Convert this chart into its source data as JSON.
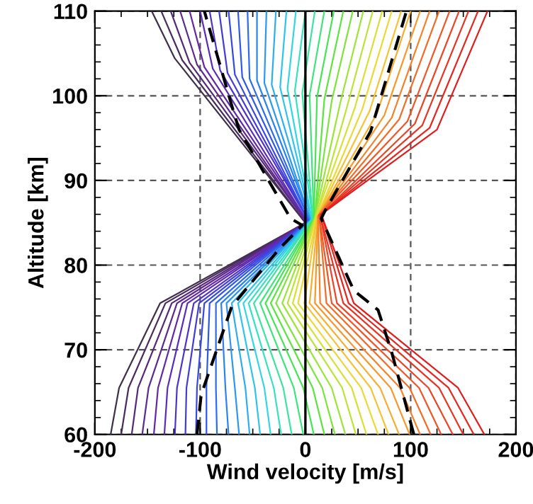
{
  "chart_data": {
    "type": "line",
    "xlabel": "Wind velocity [m/s]",
    "ylabel": "Altitude [km]",
    "xlim": [
      -200,
      200
    ],
    "xticks": [
      -200,
      -100,
      0,
      100,
      200
    ],
    "ylim": [
      60,
      110
    ],
    "yticks": [
      60,
      70,
      80,
      90,
      100,
      110
    ],
    "grid": true,
    "ref_lines": [
      {
        "axis": "x",
        "value": 0,
        "color": "#000000",
        "line_style": "solid"
      }
    ],
    "series": [
      {
        "color": "#40304a",
        "x": [
          -185,
          -177,
          -138,
          0,
          -124,
          -146
        ],
        "values": [
          60,
          65.5,
          75.5,
          85,
          104.4,
          110
        ]
      },
      {
        "color": "#4a2c60",
        "x": [
          -175,
          -168,
          -133,
          0,
          -117,
          -137
        ],
        "values": [
          60,
          65.5,
          75.5,
          85,
          104.2,
          110
        ]
      },
      {
        "color": "#542a78",
        "x": [
          -165,
          -159,
          -127,
          1,
          -110,
          -128
        ],
        "values": [
          60,
          65.5,
          75.5,
          85.1,
          103.9,
          110
        ]
      },
      {
        "color": "#5e2a8e",
        "x": [
          -155,
          -149,
          -122,
          1,
          -103,
          -119
        ],
        "values": [
          60,
          65.5,
          75.5,
          85.1,
          103.7,
          110
        ]
      },
      {
        "color": "#6428a4",
        "x": [
          -144,
          -140,
          -117,
          2,
          -96,
          -110
        ],
        "values": [
          60,
          65.5,
          75.5,
          85.1,
          103.4,
          110
        ]
      },
      {
        "color": "#5c2cb8",
        "x": [
          -134,
          -131,
          -112,
          2,
          -88,
          -100
        ],
        "values": [
          60,
          65.5,
          75.5,
          85.1,
          103.2,
          110
        ]
      },
      {
        "color": "#5034c8",
        "x": [
          -124,
          -122,
          -106,
          3,
          -81,
          -91
        ],
        "values": [
          60,
          65.5,
          75.5,
          85.2,
          103,
          110
        ]
      },
      {
        "color": "#443cd6",
        "x": [
          -114,
          -113,
          -101,
          3,
          -74,
          -82
        ],
        "values": [
          60,
          65.5,
          75.5,
          85.2,
          102.7,
          110
        ]
      },
      {
        "color": "#3848e2",
        "x": [
          -104,
          -103,
          -96,
          3,
          -67,
          -73
        ],
        "values": [
          60,
          65.5,
          75.5,
          85.2,
          102.5,
          110
        ]
      },
      {
        "color": "#3058ea",
        "x": [
          -94,
          -94,
          -91,
          4,
          -60,
          -64
        ],
        "values": [
          60,
          65.5,
          75.5,
          85.3,
          102.2,
          110
        ]
      },
      {
        "color": "#2c6cf0",
        "x": [
          -84,
          -85,
          -85,
          4,
          -53,
          -55
        ],
        "values": [
          60,
          65.5,
          75.5,
          85.3,
          102,
          110
        ]
      },
      {
        "color": "#2c82f2",
        "x": [
          -73,
          -76,
          -80,
          5,
          -46,
          -46
        ],
        "values": [
          60,
          65.5,
          75.5,
          85.3,
          101.8,
          110
        ]
      },
      {
        "color": "#2c98f2",
        "x": [
          -63,
          -67,
          -75,
          5,
          -39,
          -37
        ],
        "values": [
          60,
          65.5,
          75.5,
          85.3,
          101.5,
          110
        ]
      },
      {
        "color": "#2eaef0",
        "x": [
          -53,
          -57,
          -70,
          6,
          -32,
          -28
        ],
        "values": [
          60,
          65.5,
          75.5,
          85.4,
          101.3,
          110
        ]
      },
      {
        "color": "#30c4ec",
        "x": [
          -43,
          -48,
          -64,
          6,
          -24,
          -18
        ],
        "values": [
          60,
          65.5,
          75.5,
          85.4,
          101,
          110
        ]
      },
      {
        "color": "#34d6e0",
        "x": [
          -33,
          -39,
          -59,
          6,
          -17,
          -9
        ],
        "values": [
          60,
          65.5,
          75.5,
          85.4,
          100.8,
          110
        ]
      },
      {
        "color": "#38e0c4",
        "x": [
          -23,
          -30,
          -54,
          7,
          -10,
          0
        ],
        "values": [
          60,
          65.5,
          75.5,
          85.5,
          100.6,
          110
        ]
      },
      {
        "color": "#3ce4a0",
        "x": [
          -13,
          -21,
          -49,
          7,
          -3,
          9
        ],
        "values": [
          60,
          65.5,
          75.5,
          85.5,
          100.3,
          110
        ]
      },
      {
        "color": "#40e47c",
        "x": [
          -2,
          -11,
          -43,
          8,
          4,
          18
        ],
        "values": [
          60,
          65.5,
          75.5,
          85.5,
          100.1,
          110
        ]
      },
      {
        "color": "#48e458",
        "x": [
          8,
          -2,
          -38,
          8,
          11,
          27
        ],
        "values": [
          60,
          65.5,
          75.5,
          85.5,
          99.8,
          110
        ]
      },
      {
        "color": "#5ce440",
        "x": [
          18,
          7,
          -33,
          9,
          18,
          36
        ],
        "values": [
          60,
          65.5,
          75.5,
          85.6,
          99.6,
          110
        ]
      },
      {
        "color": "#7ce43c",
        "x": [
          28,
          16,
          -28,
          9,
          25,
          45
        ],
        "values": [
          60,
          65.5,
          75.5,
          85.6,
          99.4,
          110
        ]
      },
      {
        "color": "#9ce43a",
        "x": [
          38,
          25,
          -22,
          9,
          33,
          55
        ],
        "values": [
          60,
          65.5,
          75.5,
          85.6,
          99.1,
          110
        ]
      },
      {
        "color": "#bce438",
        "x": [
          48,
          35,
          -17,
          10,
          40,
          64
        ],
        "values": [
          60,
          65.5,
          75.5,
          85.7,
          98.9,
          110
        ]
      },
      {
        "color": "#d8e038",
        "x": [
          58,
          44,
          -12,
          10,
          47,
          73
        ],
        "values": [
          60,
          65.5,
          75.5,
          85.7,
          98.6,
          110
        ]
      },
      {
        "color": "#ecd838",
        "x": [
          69,
          53,
          -7,
          11,
          54,
          82
        ],
        "values": [
          60,
          65.5,
          75.5,
          85.7,
          98.4,
          110
        ]
      },
      {
        "color": "#f4c434",
        "x": [
          79,
          62,
          -1,
          11,
          61,
          91
        ],
        "values": [
          60,
          65.5,
          75.5,
          85.7,
          98.2,
          110
        ]
      },
      {
        "color": "#f6ae30",
        "x": [
          89,
          71,
          4,
          12,
          68,
          100
        ],
        "values": [
          60,
          65.5,
          75.5,
          85.8,
          97.9,
          110
        ]
      },
      {
        "color": "#f6982c",
        "x": [
          99,
          81,
          9,
          12,
          75,
          109
        ],
        "values": [
          60,
          65.5,
          75.5,
          85.8,
          97.7,
          110
        ]
      },
      {
        "color": "#f4822a",
        "x": [
          109,
          90,
          14,
          12,
          82,
          118
        ],
        "values": [
          60,
          65.5,
          75.5,
          85.8,
          97.4,
          110
        ]
      },
      {
        "color": "#f26c28",
        "x": [
          119,
          99,
          20,
          13,
          89,
          127
        ],
        "values": [
          60,
          65.5,
          75.5,
          85.9,
          97.2,
          110
        ]
      },
      {
        "color": "#f05626",
        "x": [
          129,
          108,
          25,
          13,
          97,
          137
        ],
        "values": [
          60,
          65.5,
          75.5,
          85.9,
          97,
          110
        ]
      },
      {
        "color": "#ec4424",
        "x": [
          140,
          117,
          30,
          14,
          104,
          146
        ],
        "values": [
          60,
          65.5,
          75.5,
          85.9,
          96.7,
          110
        ]
      },
      {
        "color": "#e83422",
        "x": [
          150,
          127,
          36,
          14,
          111,
          155
        ],
        "values": [
          60,
          65.5,
          75.5,
          85.9,
          96.5,
          110
        ]
      },
      {
        "color": "#e42820",
        "x": [
          160,
          136,
          41,
          15,
          118,
          164
        ],
        "values": [
          60,
          65.5,
          75.5,
          86,
          96.2,
          110
        ]
      },
      {
        "color": "#e01e1e",
        "x": [
          170,
          145,
          46,
          15,
          125,
          173
        ],
        "values": [
          60,
          65.5,
          75.5,
          86,
          96,
          110
        ]
      },
      {
        "color": "#000000",
        "line_style": "dashed",
        "x": [
          -103,
          -99,
          -70,
          -25,
          -3,
          -14,
          -63,
          -68,
          -96
        ],
        "values": [
          60,
          64.7,
          75.1,
          81.9,
          84.7,
          85.5,
          96,
          98,
          110
        ]
      },
      {
        "color": "#000000",
        "line_style": "dashed",
        "x": [
          103,
          82,
          69,
          46,
          15,
          19,
          62,
          96
        ],
        "values": [
          60,
          69.7,
          74.7,
          77,
          85.5,
          86.5,
          95.8,
          110
        ]
      }
    ]
  }
}
